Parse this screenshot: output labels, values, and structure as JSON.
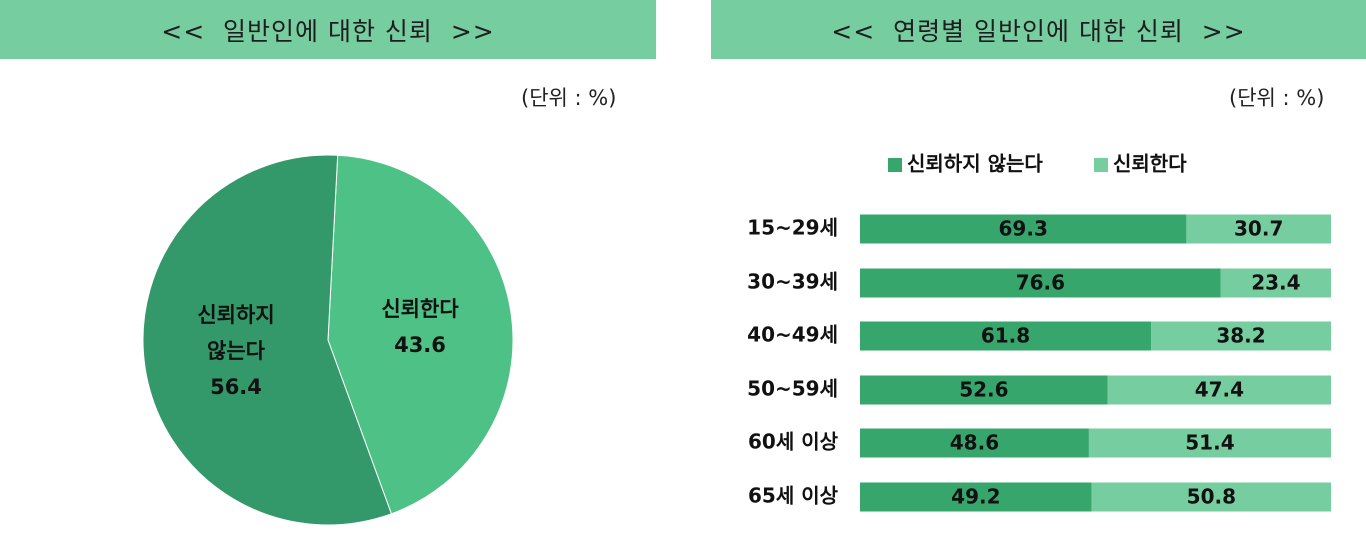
{
  "colors": {
    "banner": "#76cd9f",
    "not_trust": "#36a66d",
    "trust": "#76cd9f",
    "pie_not_trust": "#34996a",
    "pie_trust": "#4ec186"
  },
  "chart_data": [
    {
      "type": "pie",
      "title": "<<  일반인에 대한 신뢰  >>",
      "unit_label": "(단위 : %)",
      "slices": [
        {
          "label_lines": [
            "신뢰하지",
            "않는다"
          ],
          "value": 56.4,
          "value_label": "56.4"
        },
        {
          "label_lines": [
            "신뢰한다"
          ],
          "value": 43.6,
          "value_label": "43.6"
        }
      ]
    },
    {
      "type": "bar",
      "stacked": true,
      "orientation": "horizontal",
      "title": "<<  연령별 일반인에 대한 신뢰  >>",
      "unit_label": "(단위 : %)",
      "legend_position": "top",
      "categories": [
        "15~29세",
        "30~39세",
        "40~49세",
        "50~59세",
        "60세 이상",
        "65세 이상"
      ],
      "series": [
        {
          "name": "신뢰하지 않는다",
          "values": [
            69.3,
            76.6,
            61.8,
            52.6,
            48.6,
            49.2
          ]
        },
        {
          "name": "신뢰한다",
          "values": [
            30.7,
            23.4,
            38.2,
            47.4,
            51.4,
            50.8
          ]
        }
      ],
      "xlim": [
        0,
        100
      ]
    }
  ]
}
